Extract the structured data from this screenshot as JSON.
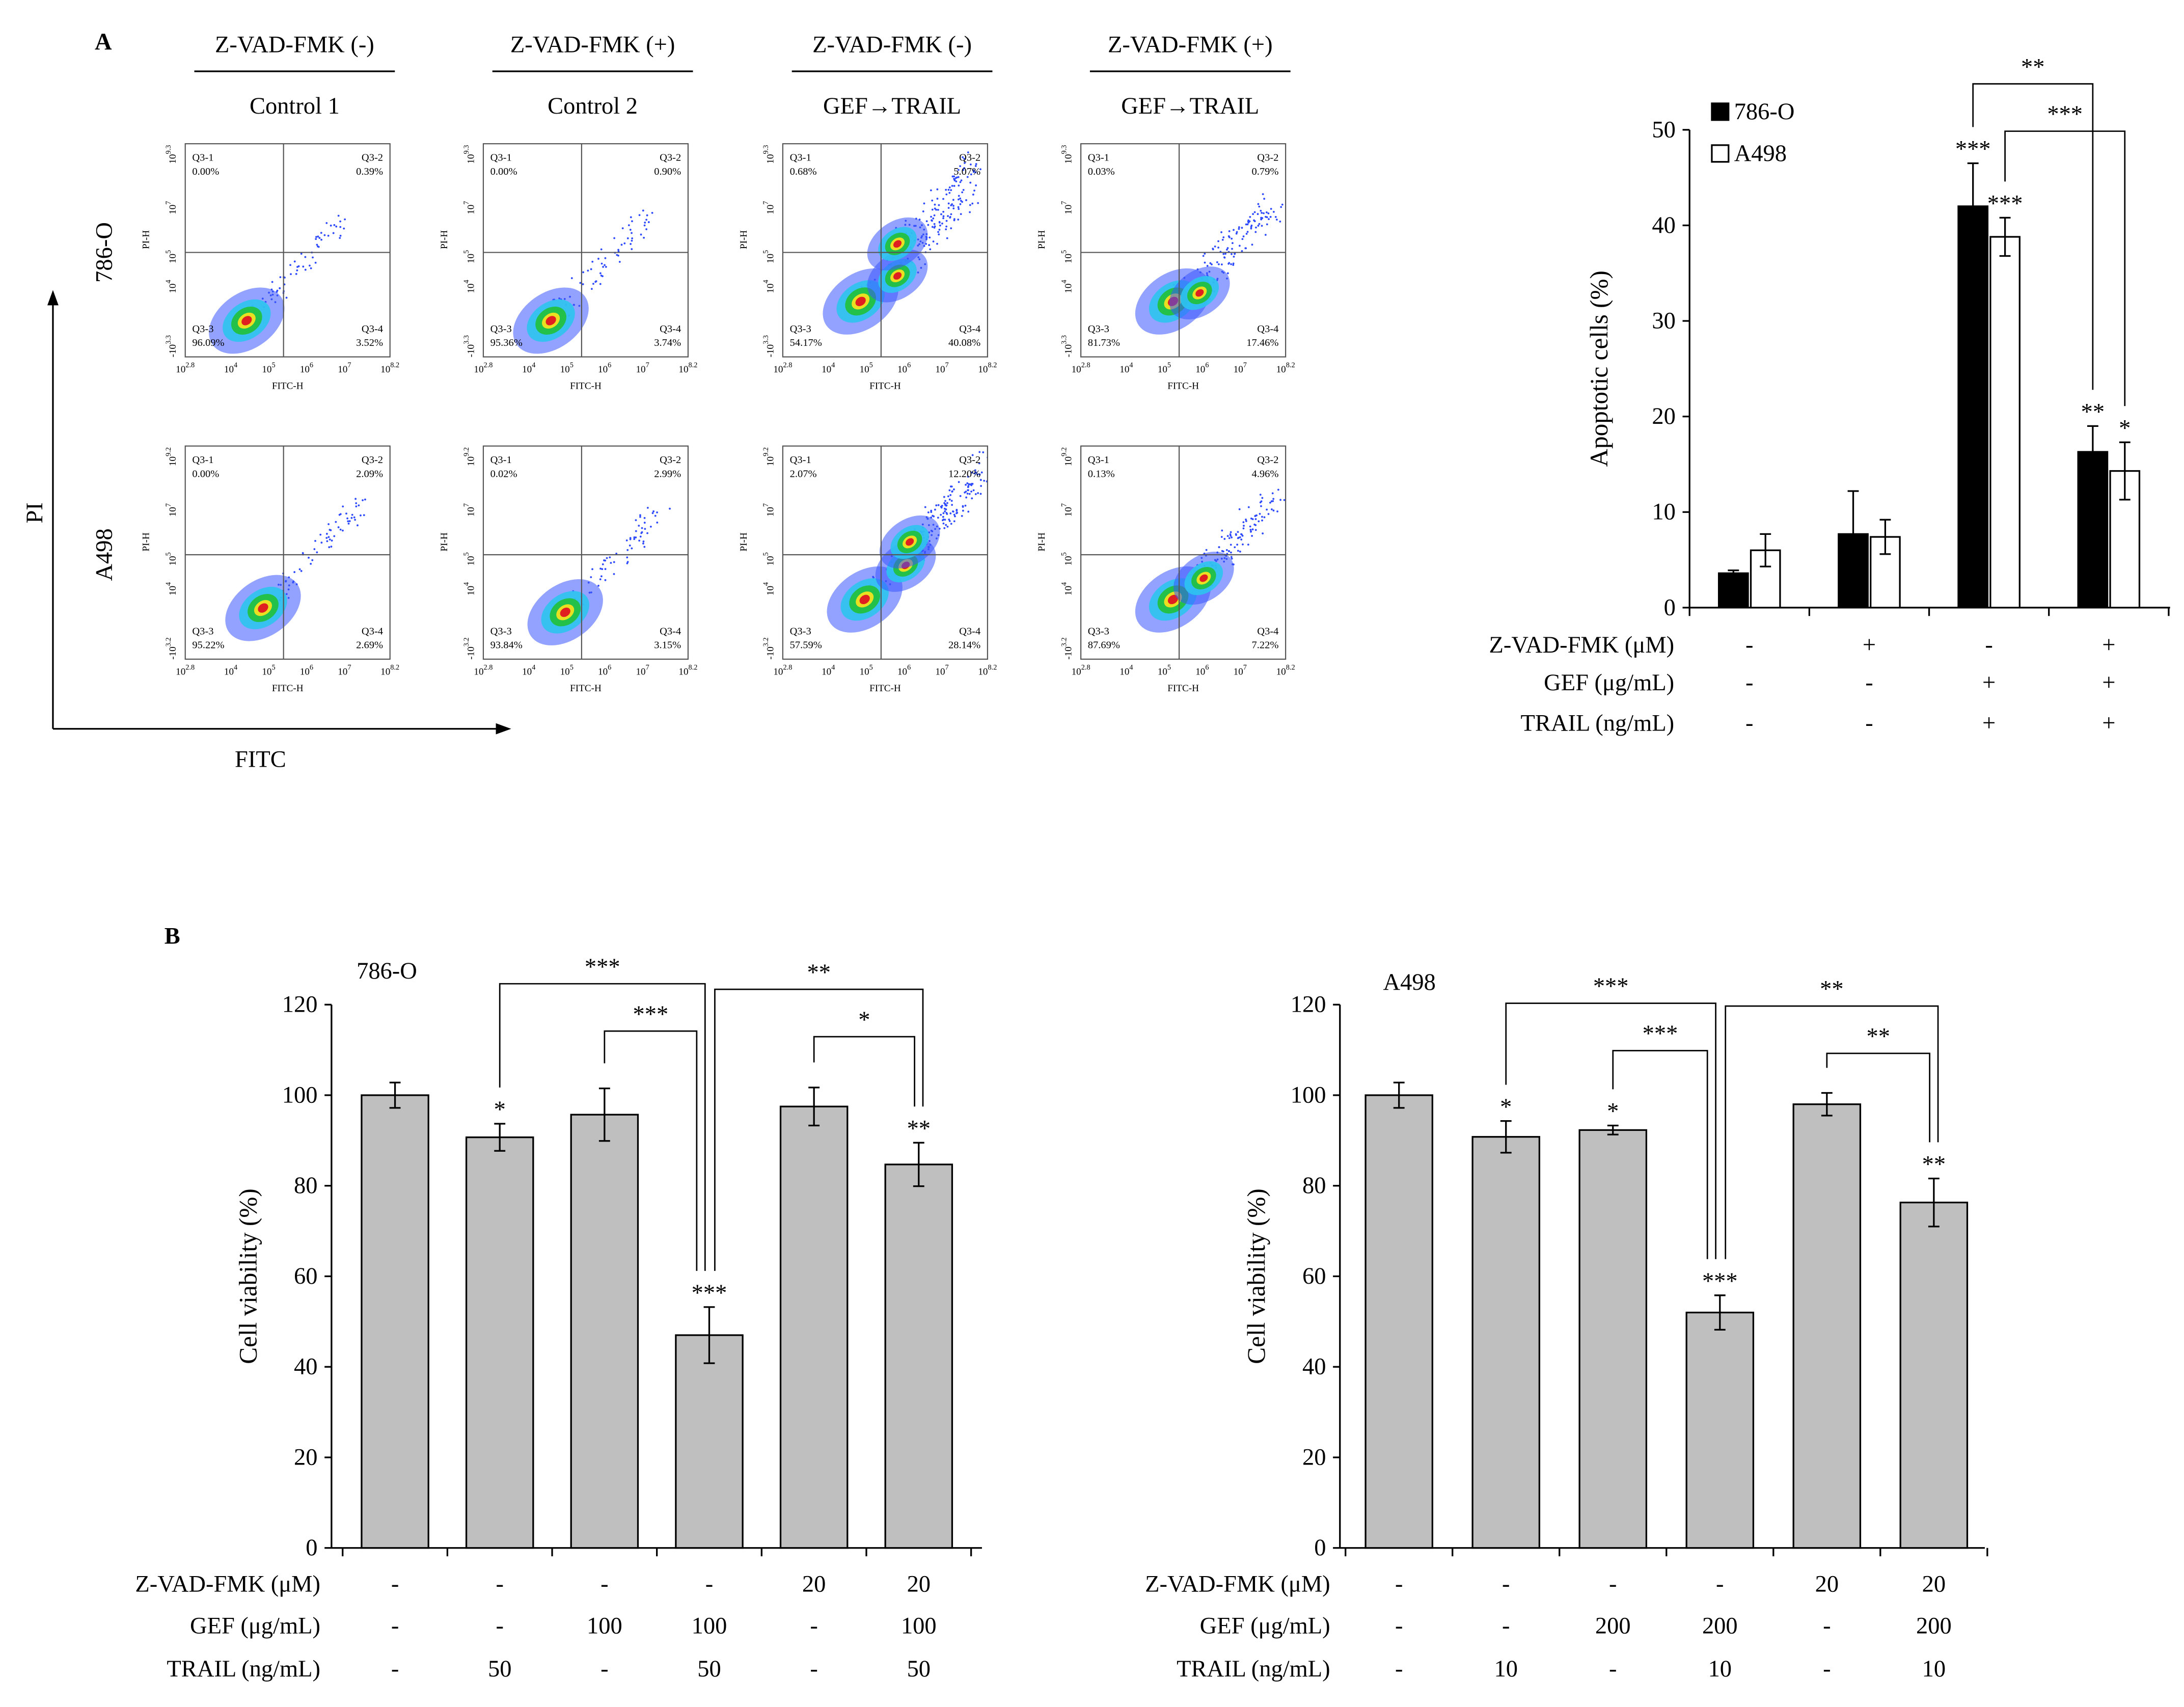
{
  "figure": {
    "panel_labels": [
      "A",
      "B"
    ],
    "flow": {
      "x_axis_label": "FITC",
      "y_axis_label": "PI",
      "plot_x_label": "FITC-H",
      "plot_y_label": "PI-H",
      "xticks": [
        "10^2.8",
        "10^4",
        "10^5",
        "10^6",
        "10^7",
        "10^8.2"
      ],
      "columns": [
        {
          "header": "Z-VAD-FMK (-)",
          "title": "Control 1"
        },
        {
          "header": "Z-VAD-FMK (+)",
          "title": "Control 2"
        },
        {
          "header": "Z-VAD-FMK (-)",
          "title": "GEF→TRAIL"
        },
        {
          "header": "Z-VAD-FMK (+)",
          "title": "GEF→TRAIL"
        }
      ],
      "rows": [
        {
          "label": "786-O",
          "yticks": [
            "-10^3.3",
            "10^4",
            "10^5",
            "10^7",
            "10^9.3"
          ],
          "plots": [
            {
              "quadrants": [
                {
                  "name": "Q3-1",
                  "value": "0.00%"
                },
                {
                  "name": "Q3-2",
                  "value": "0.39%"
                },
                {
                  "name": "Q3-3",
                  "value": "96.09%"
                },
                {
                  "name": "Q3-4",
                  "value": "3.52%"
                }
              ]
            },
            {
              "quadrants": [
                {
                  "name": "Q3-1",
                  "value": "0.00%"
                },
                {
                  "name": "Q3-2",
                  "value": "0.90%"
                },
                {
                  "name": "Q3-3",
                  "value": "95.36%"
                },
                {
                  "name": "Q3-4",
                  "value": "3.74%"
                }
              ]
            },
            {
              "quadrants": [
                {
                  "name": "Q3-1",
                  "value": "0.68%"
                },
                {
                  "name": "Q3-2",
                  "value": "5.07%"
                },
                {
                  "name": "Q3-3",
                  "value": "54.17%"
                },
                {
                  "name": "Q3-4",
                  "value": "40.08%"
                }
              ]
            },
            {
              "quadrants": [
                {
                  "name": "Q3-1",
                  "value": "0.03%"
                },
                {
                  "name": "Q3-2",
                  "value": "0.79%"
                },
                {
                  "name": "Q3-3",
                  "value": "81.73%"
                },
                {
                  "name": "Q3-4",
                  "value": "17.46%"
                }
              ]
            }
          ]
        },
        {
          "label": "A498",
          "yticks": [
            "-10^3.2",
            "10^4",
            "10^5",
            "10^7",
            "10^9.2"
          ],
          "plots": [
            {
              "quadrants": [
                {
                  "name": "Q3-1",
                  "value": "0.00%"
                },
                {
                  "name": "Q3-2",
                  "value": "2.09%"
                },
                {
                  "name": "Q3-3",
                  "value": "95.22%"
                },
                {
                  "name": "Q3-4",
                  "value": "2.69%"
                }
              ]
            },
            {
              "quadrants": [
                {
                  "name": "Q3-1",
                  "value": "0.02%"
                },
                {
                  "name": "Q3-2",
                  "value": "2.99%"
                },
                {
                  "name": "Q3-3",
                  "value": "93.84%"
                },
                {
                  "name": "Q3-4",
                  "value": "3.15%"
                }
              ]
            },
            {
              "quadrants": [
                {
                  "name": "Q3-1",
                  "value": "2.07%"
                },
                {
                  "name": "Q3-2",
                  "value": "12.20%"
                },
                {
                  "name": "Q3-3",
                  "value": "57.59%"
                },
                {
                  "name": "Q3-4",
                  "value": "28.14%"
                }
              ]
            },
            {
              "quadrants": [
                {
                  "name": "Q3-1",
                  "value": "0.13%"
                },
                {
                  "name": "Q3-2",
                  "value": "4.96%"
                },
                {
                  "name": "Q3-3",
                  "value": "87.69%"
                },
                {
                  "name": "Q3-4",
                  "value": "7.22%"
                }
              ]
            }
          ]
        }
      ]
    }
  },
  "chart_data": [
    {
      "type": "bar",
      "ylabel": "Apoptotic cells (%)",
      "categories": [
        null,
        null,
        null,
        null
      ],
      "ylim": [
        0,
        50
      ],
      "yticks": [
        0,
        10,
        20,
        30,
        40,
        50
      ],
      "legend": "upper left",
      "series": [
        {
          "name": "786-O",
          "color": "#000000",
          "values": [
            3.6,
            7.7,
            42,
            16.3
          ],
          "errors": [
            0.3,
            4.5,
            4.5,
            2.7
          ],
          "significance": [
            null,
            null,
            "***",
            "**"
          ]
        },
        {
          "name": "A498",
          "color": "#ffffff",
          "values": [
            6,
            7.4,
            38.8,
            14.3
          ],
          "errors": [
            1.7,
            1.8,
            2,
            3
          ],
          "significance": [
            null,
            null,
            "***",
            "*"
          ]
        }
      ],
      "treatments": {
        "labels": [
          "Z-VAD-FMK (μM)",
          "GEF (μg/mL)",
          "TRAIL (ng/mL)"
        ],
        "rows": [
          [
            "-",
            "+",
            "-",
            "+"
          ],
          [
            "-",
            "-",
            "+",
            "+"
          ],
          [
            "-",
            "-",
            "+",
            "+"
          ]
        ]
      },
      "comparison_labels": [
        "**",
        "***"
      ]
    },
    {
      "type": "bar",
      "title": "786-O",
      "ylabel": "Cell viability (%)",
      "categories": [
        null,
        null,
        null,
        null,
        null,
        null
      ],
      "ylim": [
        0,
        120
      ],
      "yticks": [
        0,
        20,
        40,
        60,
        80,
        100,
        120
      ],
      "color": "#bfbfbf",
      "values": [
        100,
        90.7,
        95.7,
        47,
        97.5,
        84.7
      ],
      "errors": [
        2.8,
        3,
        5.8,
        6.2,
        4.2,
        4.8
      ],
      "significance": [
        null,
        "*",
        null,
        "***",
        null,
        "**"
      ],
      "treatments": {
        "labels": [
          "Z-VAD-FMK (μM)",
          "GEF (μg/mL)",
          "TRAIL (ng/mL)"
        ],
        "rows": [
          [
            "-",
            "-",
            "-",
            "-",
            20,
            20
          ],
          [
            "-",
            "-",
            100,
            100,
            "-",
            100
          ],
          [
            "-",
            50,
            "-",
            50,
            "-",
            50
          ]
        ]
      },
      "comparison_labels": [
        "***",
        "***",
        "**",
        "*"
      ]
    },
    {
      "type": "bar",
      "title": "A498",
      "ylabel": "Cell viability (%)",
      "categories": [
        null,
        null,
        null,
        null,
        null,
        null
      ],
      "ylim": [
        0,
        120
      ],
      "yticks": [
        0,
        20,
        40,
        60,
        80,
        100,
        120
      ],
      "color": "#bfbfbf",
      "values": [
        100,
        90.8,
        92.3,
        52,
        98,
        76.3
      ],
      "errors": [
        2.8,
        3.5,
        1,
        3.8,
        2.5,
        5.3
      ],
      "significance": [
        null,
        "*",
        "*",
        "***",
        null,
        "**"
      ],
      "treatments": {
        "labels": [
          "Z-VAD-FMK (μM)",
          "GEF (μg/mL)",
          "TRAIL (ng/mL)"
        ],
        "rows": [
          [
            "-",
            "-",
            "-",
            "-",
            20,
            20
          ],
          [
            "-",
            "-",
            200,
            200,
            "-",
            200
          ],
          [
            "-",
            10,
            "-",
            10,
            "-",
            10
          ]
        ]
      },
      "comparison_labels": [
        "***",
        "***",
        "**",
        "**"
      ]
    }
  ]
}
